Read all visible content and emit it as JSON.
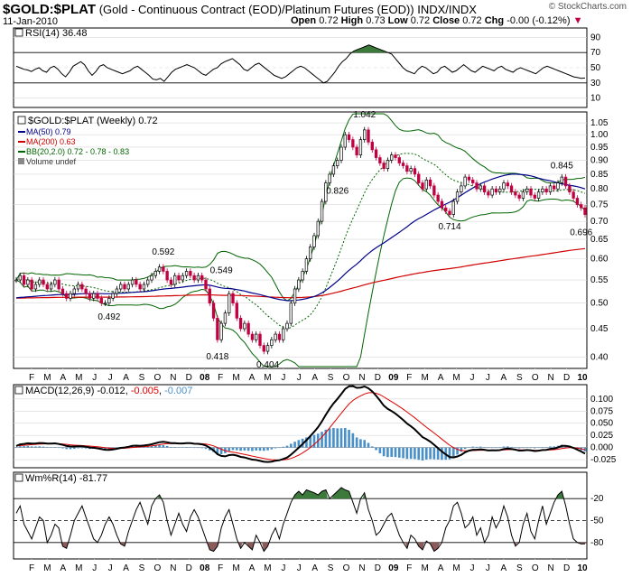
{
  "header": {
    "symbol": "$GOLD:$PLAT",
    "description": "(Gold - Continuous Contract (EOD)/Platinum Futures (EOD))",
    "exchange": "INDX/INDX",
    "date": "11-Jan-2010",
    "open_label": "Open",
    "open": "0.72",
    "high_label": "High",
    "high": "0.73",
    "low_label": "Low",
    "low": "0.72",
    "close_label": "Close",
    "close": "0.72",
    "chg_label": "Chg",
    "chg": "-0.00 (-0.12%)",
    "logo": "© StockCharts.com"
  },
  "colors": {
    "ma50": "#00008b",
    "ma200": "#d00000",
    "bb": "#006400",
    "up": "#000000",
    "down": "#c00040",
    "rsi_fill": "#3c7a3c",
    "macd_hist": "#4a90c8",
    "wmr_fill_hi": "#3c7a3c",
    "wmr_fill_lo": "#8b5a5a"
  },
  "x_axis": {
    "labels": [
      "F",
      "M",
      "A",
      "M",
      "J",
      "J",
      "A",
      "S",
      "O",
      "N",
      "D",
      "08",
      "F",
      "M",
      "A",
      "M",
      "J",
      "J",
      "A",
      "S",
      "O",
      "N",
      "D",
      "09",
      "F",
      "M",
      "A",
      "M",
      "J",
      "J",
      "A",
      "S",
      "O",
      "N",
      "D",
      "10"
    ],
    "bold": [
      "08",
      "09",
      "10"
    ]
  },
  "rsi": {
    "label": "RSI(14) 36.48",
    "ticks": [
      "90",
      "70",
      "50",
      "30",
      "10"
    ],
    "levels": [
      90,
      70,
      50,
      30,
      10
    ],
    "overbought": 70,
    "oversold": 30,
    "values": [
      52,
      50,
      48,
      47,
      45,
      48,
      50,
      46,
      44,
      50,
      52,
      48,
      42,
      38,
      44,
      52,
      55,
      58,
      54,
      46,
      40,
      45,
      52,
      54,
      50,
      48,
      46,
      44,
      42,
      44,
      46,
      50,
      52,
      48,
      44,
      40,
      35,
      34,
      36,
      32,
      38,
      44,
      48,
      50,
      52,
      54,
      52,
      50,
      46,
      42,
      40,
      44,
      48,
      50,
      55,
      58,
      60,
      62,
      58,
      54,
      48,
      46,
      50,
      54,
      56,
      52,
      48,
      44,
      40,
      38,
      36,
      38,
      42,
      46,
      50,
      52,
      50,
      46,
      42,
      38,
      34,
      30,
      32,
      38,
      44,
      52,
      58,
      62,
      68,
      72,
      74,
      76,
      78,
      80,
      78,
      76,
      74,
      72,
      70,
      68,
      62,
      56,
      50,
      46,
      44,
      42,
      48,
      52,
      50,
      46,
      42,
      44,
      50,
      52,
      48,
      44,
      46,
      50,
      54,
      50,
      46,
      44,
      48,
      52,
      50,
      48,
      46,
      50,
      52,
      48,
      46,
      44,
      48,
      50,
      48,
      46,
      44,
      42,
      46,
      50,
      52,
      50,
      48,
      46,
      44,
      42,
      40,
      38,
      37,
      36,
      36.48
    ]
  },
  "price": {
    "legend": {
      "title": "$GOLD:$PLAT (Weekly) 0.72",
      "ma50": "MA(50) 0.79",
      "ma200": "MA(200) 0.63",
      "bb": "BB(20,2.0) 0.72 - 0.78 - 0.83",
      "volume": "Volume undef"
    },
    "ticks": [
      "1.05",
      "1.00",
      "0.95",
      "0.90",
      "0.85",
      "0.80",
      "0.75",
      "0.70",
      "0.65",
      "0.60",
      "0.55",
      "0.50",
      "0.45",
      "0.40"
    ],
    "tick_values": [
      1.05,
      1.0,
      0.95,
      0.9,
      0.85,
      0.8,
      0.75,
      0.7,
      0.65,
      0.6,
      0.55,
      0.5,
      0.45,
      0.4
    ],
    "annotations": [
      {
        "text": "0.592",
        "i": 38,
        "v": 0.592,
        "pos": "above"
      },
      {
        "text": "0.492",
        "i": 24,
        "v": 0.492,
        "pos": "below"
      },
      {
        "text": "0.549",
        "i": 53,
        "v": 0.549,
        "pos": "above"
      },
      {
        "text": "0.418",
        "i": 52,
        "v": 0.418,
        "pos": "below"
      },
      {
        "text": "0.404",
        "i": 65,
        "v": 0.404,
        "pos": "below"
      },
      {
        "text": "1.042",
        "i": 90,
        "v": 1.042,
        "pos": "above"
      },
      {
        "text": "0.826",
        "i": 83,
        "v": 0.826,
        "pos": "below"
      },
      {
        "text": "0.714",
        "i": 112,
        "v": 0.714,
        "pos": "below"
      },
      {
        "text": "0.845",
        "i": 141,
        "v": 0.845,
        "pos": "above"
      },
      {
        "text": "0.696",
        "i": 146,
        "v": 0.696,
        "pos": "below"
      }
    ],
    "closes": [
      0.55,
      0.56,
      0.54,
      0.55,
      0.53,
      0.54,
      0.55,
      0.54,
      0.53,
      0.54,
      0.55,
      0.53,
      0.52,
      0.51,
      0.52,
      0.53,
      0.54,
      0.53,
      0.52,
      0.51,
      0.52,
      0.51,
      0.5,
      0.5,
      0.51,
      0.52,
      0.53,
      0.54,
      0.53,
      0.54,
      0.55,
      0.54,
      0.53,
      0.54,
      0.55,
      0.56,
      0.57,
      0.58,
      0.57,
      0.55,
      0.54,
      0.56,
      0.55,
      0.56,
      0.57,
      0.56,
      0.55,
      0.56,
      0.55,
      0.53,
      0.5,
      0.47,
      0.43,
      0.46,
      0.48,
      0.52,
      0.5,
      0.47,
      0.45,
      0.46,
      0.44,
      0.43,
      0.44,
      0.42,
      0.41,
      0.42,
      0.43,
      0.44,
      0.43,
      0.45,
      0.46,
      0.5,
      0.53,
      0.55,
      0.57,
      0.6,
      0.63,
      0.66,
      0.7,
      0.76,
      0.82,
      0.85,
      0.88,
      0.9,
      0.95,
      1.0,
      0.98,
      0.95,
      0.92,
      0.98,
      1.02,
      0.97,
      0.94,
      0.91,
      0.89,
      0.87,
      0.9,
      0.92,
      0.91,
      0.89,
      0.88,
      0.86,
      0.87,
      0.85,
      0.82,
      0.8,
      0.83,
      0.81,
      0.78,
      0.76,
      0.74,
      0.73,
      0.72,
      0.76,
      0.79,
      0.81,
      0.84,
      0.83,
      0.82,
      0.8,
      0.81,
      0.79,
      0.78,
      0.8,
      0.79,
      0.8,
      0.82,
      0.81,
      0.79,
      0.78,
      0.77,
      0.79,
      0.8,
      0.78,
      0.77,
      0.79,
      0.8,
      0.79,
      0.81,
      0.8,
      0.82,
      0.84,
      0.81,
      0.79,
      0.77,
      0.75,
      0.74,
      0.72
    ],
    "ylim": [
      0.385,
      1.09
    ]
  },
  "macd": {
    "label": "MACD(12,26,9)",
    "v1": "-0.012",
    "v2": "-0.005",
    "v3": "-0.007",
    "ticks": [
      "0.100",
      "0.075",
      "0.050",
      "0.025",
      "0.000",
      "-0.025"
    ],
    "tick_values": [
      0.1,
      0.075,
      0.05,
      0.025,
      0.0,
      -0.025
    ],
    "ylim": [
      -0.038,
      0.122
    ]
  },
  "wmr": {
    "label": "Wm%R(14) -81.77",
    "ticks": [
      "-20",
      "-50",
      "-80"
    ],
    "tick_values": [
      -20,
      -50,
      -80
    ],
    "values": [
      -40,
      -30,
      -55,
      -65,
      -75,
      -60,
      -45,
      -50,
      -80,
      -70,
      -55,
      -60,
      -85,
      -88,
      -70,
      -50,
      -40,
      -30,
      -45,
      -60,
      -75,
      -80,
      -70,
      -55,
      -45,
      -55,
      -70,
      -82,
      -85,
      -65,
      -50,
      -35,
      -25,
      -40,
      -55,
      -30,
      -20,
      -15,
      -25,
      -50,
      -70,
      -55,
      -40,
      -55,
      -65,
      -45,
      -35,
      -45,
      -60,
      -75,
      -90,
      -92,
      -85,
      -60,
      -45,
      -35,
      -55,
      -75,
      -88,
      -80,
      -85,
      -90,
      -70,
      -80,
      -92,
      -85,
      -70,
      -60,
      -75,
      -55,
      -40,
      -25,
      -15,
      -10,
      -15,
      -8,
      -10,
      -12,
      -15,
      -10,
      -8,
      -20,
      -15,
      -10,
      -5,
      -8,
      -10,
      -25,
      -40,
      -20,
      -12,
      -35,
      -50,
      -70,
      -65,
      -55,
      -45,
      -40,
      -55,
      -70,
      -80,
      -88,
      -70,
      -75,
      -85,
      -90,
      -78,
      -82,
      -92,
      -88,
      -80,
      -60,
      -50,
      -30,
      -25,
      -40,
      -60,
      -55,
      -45,
      -70,
      -60,
      -80,
      -70,
      -45,
      -60,
      -50,
      -30,
      -45,
      -70,
      -85,
      -80,
      -55,
      -40,
      -65,
      -75,
      -50,
      -30,
      -55,
      -40,
      -25,
      -15,
      -10,
      -30,
      -55,
      -75,
      -80,
      -82,
      -81.77
    ]
  }
}
